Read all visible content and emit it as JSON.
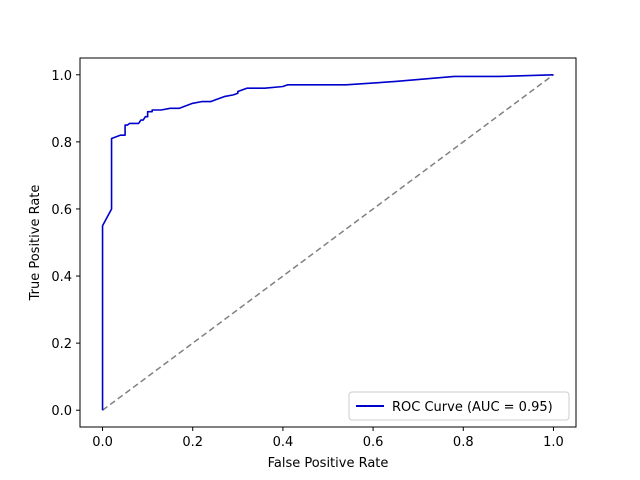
{
  "chart_data": {
    "type": "line",
    "title": "",
    "xlabel": "False Positive Rate",
    "ylabel": "True Positive Rate",
    "xlim": [
      -0.05,
      1.05
    ],
    "ylim": [
      -0.05,
      1.05
    ],
    "xticks": [
      0.0,
      0.2,
      0.4,
      0.6,
      0.8,
      1.0
    ],
    "yticks": [
      0.0,
      0.2,
      0.4,
      0.6,
      0.8,
      1.0
    ],
    "xtick_labels": [
      "0.0",
      "0.2",
      "0.4",
      "0.6",
      "0.8",
      "1.0"
    ],
    "ytick_labels": [
      "0.0",
      "0.2",
      "0.4",
      "0.6",
      "0.8",
      "1.0"
    ],
    "grid": false,
    "legend_position": "lower right",
    "series": [
      {
        "name": "ROC Curve (AUC = 0.95)",
        "color": "#0000cc",
        "style": "solid",
        "x": [
          0.0,
          0.0,
          0.02,
          0.02,
          0.02,
          0.02,
          0.04,
          0.05,
          0.05,
          0.055,
          0.06,
          0.08,
          0.085,
          0.09,
          0.095,
          0.1,
          0.1,
          0.11,
          0.11,
          0.13,
          0.15,
          0.17,
          0.18,
          0.2,
          0.22,
          0.24,
          0.25,
          0.27,
          0.29,
          0.3,
          0.3,
          0.32,
          0.34,
          0.36,
          0.4,
          0.41,
          0.42,
          0.54,
          0.65,
          0.78,
          0.88,
          1.0
        ],
        "y": [
          0.0,
          0.55,
          0.6,
          0.68,
          0.7,
          0.81,
          0.82,
          0.82,
          0.85,
          0.85,
          0.855,
          0.855,
          0.865,
          0.865,
          0.875,
          0.875,
          0.89,
          0.89,
          0.895,
          0.895,
          0.9,
          0.9,
          0.905,
          0.915,
          0.92,
          0.92,
          0.925,
          0.935,
          0.94,
          0.945,
          0.95,
          0.96,
          0.96,
          0.96,
          0.965,
          0.97,
          0.97,
          0.97,
          0.98,
          0.995,
          0.995,
          1.0
        ]
      },
      {
        "name": "",
        "color": "#808080",
        "style": "dashed",
        "x": [
          0.0,
          1.0
        ],
        "y": [
          0.0,
          1.0
        ]
      }
    ]
  }
}
